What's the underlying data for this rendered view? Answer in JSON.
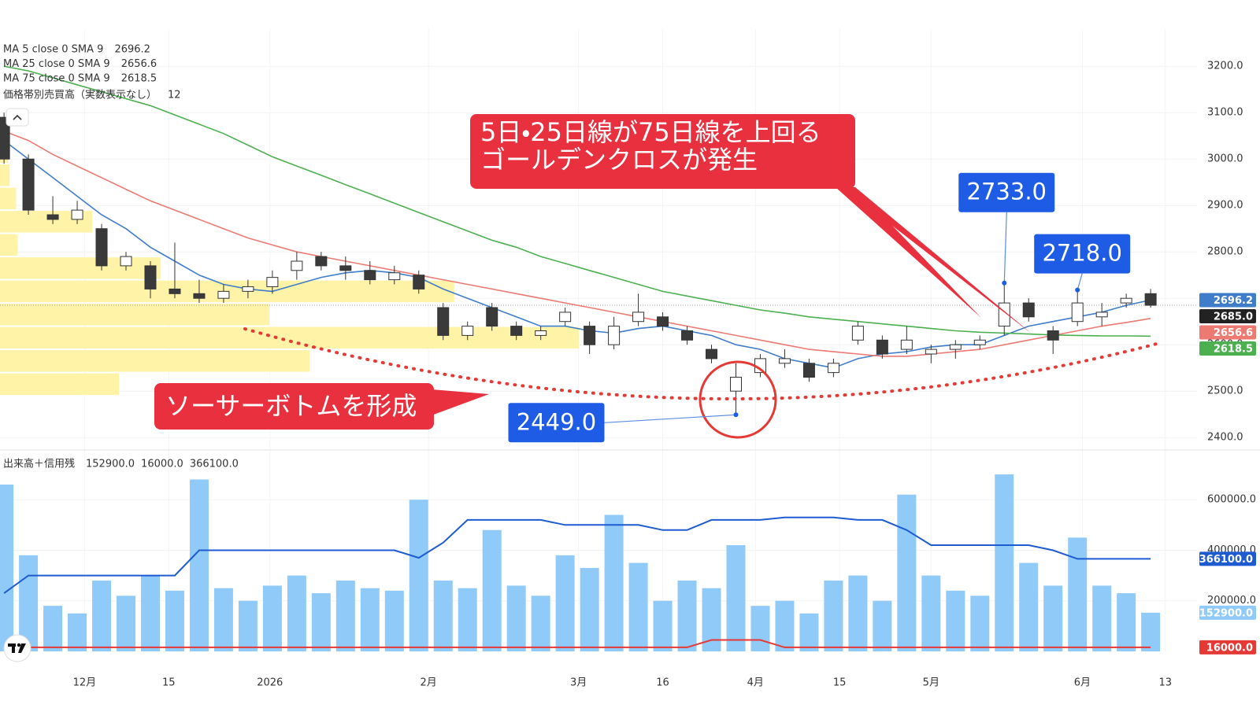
{
  "chart_data": [
    {
      "type": "candlestick",
      "x": [
        0,
        1,
        2,
        3,
        4,
        5,
        6,
        7,
        8,
        9,
        10,
        11,
        12,
        13,
        14,
        15,
        16,
        17,
        18,
        19,
        20,
        21,
        22,
        23,
        24,
        25,
        26,
        27,
        28,
        29,
        30,
        31,
        32,
        33,
        34,
        35,
        36,
        37,
        38,
        39,
        40,
        41,
        42,
        43,
        44,
        45,
        46,
        47
      ],
      "open": [
        3090,
        3000,
        2880,
        2870,
        2850,
        2770,
        2770,
        2720,
        2710,
        2700,
        2715,
        2725,
        2760,
        2790,
        2770,
        2760,
        2740,
        2750,
        2680,
        2620,
        2680,
        2640,
        2620,
        2650,
        2640,
        2600,
        2650,
        2660,
        2630,
        2590,
        2500,
        2540,
        2560,
        2560,
        2540,
        2610,
        2610,
        2590,
        2580,
        2590,
        2600,
        2640,
        2690,
        2630,
        2650,
        2660,
        2690,
        2710
      ],
      "high": [
        3100,
        3010,
        2920,
        2910,
        2860,
        2800,
        2780,
        2820,
        2740,
        2730,
        2740,
        2760,
        2800,
        2800,
        2790,
        2780,
        2770,
        2760,
        2690,
        2650,
        2690,
        2650,
        2640,
        2680,
        2650,
        2660,
        2710,
        2670,
        2640,
        2600,
        2560,
        2580,
        2590,
        2570,
        2570,
        2650,
        2620,
        2640,
        2600,
        2610,
        2620,
        2733,
        2700,
        2640,
        2718,
        2690,
        2710,
        2720
      ],
      "low": [
        2990,
        2880,
        2860,
        2860,
        2760,
        2760,
        2700,
        2700,
        2690,
        2690,
        2700,
        2710,
        2740,
        2760,
        2740,
        2730,
        2730,
        2710,
        2610,
        2610,
        2630,
        2610,
        2610,
        2640,
        2580,
        2590,
        2640,
        2630,
        2600,
        2560,
        2449,
        2530,
        2550,
        2520,
        2530,
        2600,
        2570,
        2580,
        2560,
        2570,
        2590,
        2620,
        2650,
        2580,
        2640,
        2640,
        2680,
        2680
      ],
      "close": [
        3000,
        2890,
        2870,
        2890,
        2770,
        2790,
        2720,
        2710,
        2700,
        2715,
        2725,
        2745,
        2780,
        2770,
        2760,
        2740,
        2755,
        2720,
        2620,
        2640,
        2640,
        2620,
        2630,
        2670,
        2600,
        2640,
        2670,
        2640,
        2610,
        2570,
        2530,
        2570,
        2570,
        2530,
        2560,
        2640,
        2580,
        2610,
        2590,
        2600,
        2610,
        2690,
        2660,
        2610,
        2690,
        2670,
        2700,
        2685
      ],
      "last_label": "2685.0",
      "series": [
        {
          "name": "MA 5 close 0 SMA 9",
          "color": "#3f7cc9",
          "legend_value": "2696.2",
          "values": [
            3040,
            3000,
            2960,
            2920,
            2880,
            2850,
            2810,
            2780,
            2750,
            2730,
            2720,
            2715,
            2730,
            2745,
            2755,
            2760,
            2755,
            2745,
            2720,
            2700,
            2680,
            2660,
            2640,
            2640,
            2630,
            2625,
            2635,
            2640,
            2630,
            2620,
            2600,
            2590,
            2570,
            2560,
            2550,
            2570,
            2580,
            2585,
            2595,
            2600,
            2600,
            2620,
            2640,
            2650,
            2660,
            2670,
            2685,
            2696.2
          ]
        },
        {
          "name": "MA 25 close 0 SMA 9",
          "color": "#ec7a72",
          "legend_value": "2656.6",
          "values": [
            3060,
            3040,
            3010,
            2985,
            2960,
            2935,
            2910,
            2890,
            2870,
            2850,
            2830,
            2815,
            2800,
            2790,
            2780,
            2770,
            2760,
            2750,
            2740,
            2730,
            2720,
            2710,
            2700,
            2690,
            2680,
            2670,
            2660,
            2650,
            2640,
            2630,
            2620,
            2610,
            2600,
            2590,
            2585,
            2580,
            2575,
            2575,
            2580,
            2585,
            2590,
            2600,
            2610,
            2620,
            2630,
            2640,
            2648,
            2656.6
          ]
        },
        {
          "name": "MA 75 close 0 SMA 9",
          "color": "#4caf50",
          "legend_value": "2618.5",
          "values": [
            3200,
            3190,
            3175,
            3160,
            3145,
            3130,
            3115,
            3095,
            3075,
            3055,
            3030,
            3005,
            2985,
            2965,
            2945,
            2925,
            2905,
            2885,
            2865,
            2845,
            2825,
            2810,
            2790,
            2775,
            2760,
            2745,
            2730,
            2715,
            2705,
            2695,
            2685,
            2675,
            2668,
            2660,
            2655,
            2650,
            2645,
            2640,
            2635,
            2630,
            2627,
            2625,
            2623,
            2621,
            2620,
            2619,
            2619,
            2618.5
          ]
        }
      ],
      "volume_profile": {
        "name": "価格帯別売買高（実数表示なし）",
        "rows": 12,
        "color": "#fff3a8",
        "bins": [
          2490,
          2540,
          2590,
          2640,
          2690,
          2740,
          2790,
          2840,
          2890,
          2940,
          2990,
          3040,
          3090
        ],
        "values": [
          148,
          385,
          720,
          335,
          565,
          200,
          22,
          115,
          20,
          12,
          10,
          8
        ]
      },
      "annotations": [
        {
          "lines": [
            "5日・25日線が75日線を上回る",
            "ゴールデンクロスが発生"
          ]
        },
        {
          "lines": [
            "ソーサーボトムを形成"
          ]
        }
      ],
      "price_callouts": [
        {
          "x": 41,
          "value": 2733,
          "label": "2733.0"
        },
        {
          "x": 44,
          "value": 2718,
          "label": "2718.0"
        },
        {
          "x": 30,
          "value": 2449,
          "label": "2449.0"
        }
      ],
      "xlim": [
        -0.165,
        48.9
      ],
      "xticks": [
        {
          "value": 3.3,
          "label": "12月"
        },
        {
          "value": 6.75,
          "label": "15"
        },
        {
          "value": 10.9,
          "label": "2026"
        },
        {
          "value": 17.4,
          "label": "2月"
        },
        {
          "value": 23.55,
          "label": "3月"
        },
        {
          "value": 27.0,
          "label": "16"
        },
        {
          "value": 30.8,
          "label": "4月"
        },
        {
          "value": 34.25,
          "label": "15"
        },
        {
          "value": 38.0,
          "label": "5月"
        },
        {
          "value": 44.2,
          "label": "6月"
        },
        {
          "value": 47.6,
          "label": "13"
        }
      ],
      "ylim": [
        2380,
        3280
      ],
      "yticks": [
        {
          "value": 2400,
          "label": "2400.0"
        },
        {
          "value": 2500,
          "label": "2500.0"
        },
        {
          "value": 2600,
          "label": "2600.0"
        },
        {
          "value": 2700,
          "label": "2700.0"
        },
        {
          "value": 2800,
          "label": "2800.0"
        },
        {
          "value": 2900,
          "label": "2900.0"
        },
        {
          "value": 3000,
          "label": "3000.0"
        },
        {
          "value": 3100,
          "label": "3100.0"
        },
        {
          "value": 3200,
          "label": "3200.0"
        }
      ],
      "grid": true
    },
    {
      "type": "bar",
      "title": "出来高＋信用残",
      "series": [
        {
          "type": "bar",
          "color": "#90caf9",
          "legend_value": "152900.0",
          "values": [
            660000,
            380000,
            180000,
            150000,
            280000,
            220000,
            300000,
            240000,
            680000,
            250000,
            200000,
            260000,
            300000,
            230000,
            280000,
            250000,
            240000,
            600000,
            280000,
            250000,
            480000,
            260000,
            220000,
            380000,
            330000,
            540000,
            350000,
            200000,
            280000,
            250000,
            420000,
            180000,
            200000,
            150000,
            280000,
            300000,
            200000,
            620000,
            300000,
            240000,
            220000,
            700000,
            350000,
            260000,
            450000,
            260000,
            230000,
            152900
          ]
        },
        {
          "type": "line",
          "color": "#e53935",
          "legend_value": "16000.0",
          "values": [
            16000,
            16000,
            16000,
            16000,
            16000,
            16000,
            16000,
            16000,
            16000,
            16000,
            16000,
            16000,
            16000,
            16000,
            16000,
            16000,
            16000,
            16000,
            16000,
            16000,
            16000,
            16000,
            16000,
            16000,
            16000,
            16000,
            16000,
            16000,
            16000,
            45000,
            45000,
            45000,
            16000,
            16000,
            16000,
            16000,
            16000,
            16000,
            16000,
            16000,
            16000,
            16000,
            16000,
            16000,
            16000,
            16000,
            16000,
            16000
          ]
        },
        {
          "type": "line",
          "color": "#1e5bd0",
          "legend_value": "366100.0",
          "values": [
            230000,
            300000,
            300000,
            300000,
            300000,
            300000,
            300000,
            300000,
            400000,
            400000,
            400000,
            400000,
            400000,
            400000,
            400000,
            400000,
            400000,
            370000,
            430000,
            520000,
            520000,
            520000,
            520000,
            500000,
            500000,
            500000,
            500000,
            480000,
            480000,
            520000,
            520000,
            520000,
            530000,
            530000,
            530000,
            520000,
            520000,
            480000,
            420000,
            420000,
            420000,
            420000,
            420000,
            400000,
            366100,
            366100,
            366100,
            366100
          ]
        }
      ],
      "ylim": [
        0,
        750000
      ],
      "yticks": [
        {
          "value": 200000,
          "label": "200000.0"
        },
        {
          "value": 400000,
          "label": "400000.0"
        },
        {
          "value": 600000,
          "label": "600000.0"
        }
      ],
      "grid": true
    }
  ]
}
